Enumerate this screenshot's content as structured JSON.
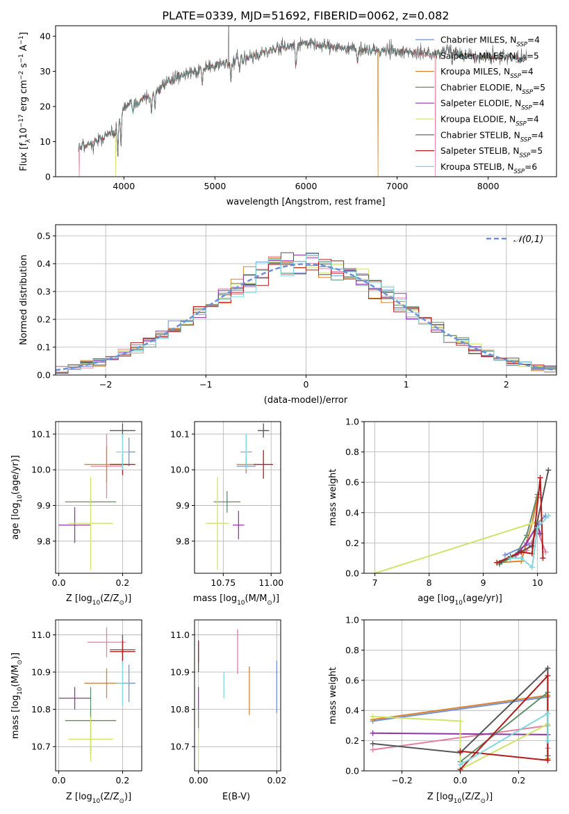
{
  "figure_title": "PLATE=0339, MJD=51692, FIBERID=0062, z=0.082",
  "colors": {
    "Chabrier MILES": "#6f8fd9",
    "Salpeter MILES": "#e67e9e",
    "Kroupa MILES": "#d9822b",
    "Chabrier ELODIE": "#5f8f6a",
    "Salpeter ELODIE": "#8e35a8",
    "Kroupa ELODIE": "#cfe36a",
    "Chabrier STELIB": "#555555",
    "Salpeter STELIB": "#b01a1a",
    "Kroupa STELIB": "#7fd6dd",
    "normal": "#6a90d8",
    "grid": "#b0b0b0"
  },
  "chart_data": [
    {
      "id": "spectrum",
      "type": "line",
      "title": "PLATE=0339, MJD=51692, FIBERID=0062, z=0.082",
      "xlabel": "wavelength [Angstrom, rest frame]",
      "ylabel": "Flux [f_λ10^-17 erg cm^-2 s^-1 A^-1]",
      "xlim": [
        3250,
        8750
      ],
      "ylim": [
        0,
        43
      ],
      "xticks": [
        4000,
        5000,
        6000,
        7000,
        8000
      ],
      "yticks": [
        0,
        10,
        20,
        30,
        40
      ],
      "grid": false,
      "legend_position": "top-right",
      "legend": [
        {
          "name": "Chabrier MILES",
          "nssp": "4"
        },
        {
          "name": "Salpeter MILES",
          "nssp": "5"
        },
        {
          "name": "Kroupa MILES",
          "nssp": "4"
        },
        {
          "name": "Chabrier ELODIE",
          "nssp": "5"
        },
        {
          "name": "Salpeter ELODIE",
          "nssp": "4"
        },
        {
          "name": "Kroupa ELODIE",
          "nssp": "4"
        },
        {
          "name": "Chabrier STELIB",
          "nssp": "4"
        },
        {
          "name": "Salpeter STELIB",
          "nssp": "5"
        },
        {
          "name": "Kroupa STELIB",
          "nssp": "6"
        }
      ],
      "continuum": [
        [
          3500,
          8
        ],
        [
          3700,
          10
        ],
        [
          3900,
          13
        ],
        [
          4000,
          20
        ],
        [
          4200,
          22
        ],
        [
          4400,
          25
        ],
        [
          4600,
          29
        ],
        [
          4800,
          30
        ],
        [
          5000,
          32
        ],
        [
          5200,
          33
        ],
        [
          5400,
          34
        ],
        [
          5600,
          36
        ],
        [
          5800,
          37
        ],
        [
          6000,
          38
        ],
        [
          6200,
          37
        ],
        [
          6400,
          37
        ],
        [
          6600,
          36
        ],
        [
          6800,
          36
        ],
        [
          7000,
          36
        ],
        [
          7200,
          35
        ],
        [
          7400,
          35
        ],
        [
          7600,
          36
        ],
        [
          7800,
          34
        ],
        [
          8000,
          34
        ],
        [
          8200,
          34
        ],
        [
          8400,
          34
        ]
      ],
      "absorption_features": [
        [
          3934,
          10
        ],
        [
          3969,
          9
        ],
        [
          4101,
          4
        ],
        [
          4304,
          6
        ],
        [
          4340,
          5
        ],
        [
          4861,
          5
        ],
        [
          5175,
          6
        ],
        [
          5270,
          3
        ],
        [
          5890,
          6
        ],
        [
          6563,
          4
        ],
        [
          7605,
          4
        ]
      ],
      "dropouts": [
        [
          3510,
          "Salpeter MILES"
        ],
        [
          3910,
          "Kroupa ELODIE"
        ],
        [
          6790,
          "Kroupa MILES"
        ],
        [
          7420,
          "Salpeter MILES"
        ]
      ]
    },
    {
      "id": "residuals",
      "type": "bar",
      "xlabel": "(data-model)/error",
      "ylabel": "Normed distribution",
      "xlim": [
        -2.5,
        2.5
      ],
      "ylim": [
        0,
        0.54
      ],
      "xticks": [
        -2,
        -1,
        0,
        1,
        2
      ],
      "yticks": [
        0.0,
        0.1,
        0.2,
        0.3,
        0.4,
        0.5
      ],
      "grid": true,
      "legend": "𝒩(0,1)",
      "legend_position": "top-right",
      "bins": 40,
      "normal_curve": {
        "mean": 0,
        "sigma": 1
      }
    },
    {
      "id": "age-vs-Z",
      "type": "scatter",
      "xlabel": "Z [log10(Z/Z⊙)]",
      "ylabel": "age  [log10(age/yr)]",
      "xlim": [
        -0.01,
        0.26
      ],
      "ylim": [
        9.71,
        10.135
      ],
      "xticks": [
        0.0,
        0.2
      ],
      "yticks": [
        9.8,
        9.9,
        10.0,
        10.1
      ],
      "grid": true,
      "points": [
        {
          "series": "Chabrier MILES",
          "x": 0.22,
          "y": 10.05,
          "xerr": 0.02,
          "yerr": 0.04
        },
        {
          "series": "Salpeter MILES",
          "x": 0.15,
          "y": 10.01,
          "xerr": 0.05,
          "yerr": 0.09
        },
        {
          "series": "Kroupa MILES",
          "x": 0.15,
          "y": 10.015,
          "xerr": 0.07,
          "yerr": 0.05
        },
        {
          "series": "Chabrier ELODIE",
          "x": 0.1,
          "y": 9.91,
          "xerr": 0.08,
          "yerr": 0.01
        },
        {
          "series": "Salpeter ELODIE",
          "x": 0.05,
          "y": 9.845,
          "xerr": 0.05,
          "yerr": 0.05
        },
        {
          "series": "Kroupa ELODIE",
          "x": 0.1,
          "y": 9.85,
          "xerr": 0.07,
          "yerr": 0.13
        },
        {
          "series": "Chabrier STELIB",
          "x": 0.2,
          "y": 10.11,
          "xerr": 0.04,
          "yerr": 0.02
        },
        {
          "series": "Salpeter STELIB",
          "x": 0.2,
          "y": 10.015,
          "xerr": 0.04,
          "yerr": 0.03
        },
        {
          "series": "Kroupa STELIB",
          "x": 0.2,
          "y": 10.05,
          "xerr": 0.02,
          "yerr": 0.05
        }
      ]
    },
    {
      "id": "age-vs-mass",
      "type": "scatter",
      "xlabel": "mass [log10(M/M⊙)]",
      "ylabel": "",
      "xlim": [
        10.6,
        11.05
      ],
      "ylim": [
        9.71,
        10.135
      ],
      "xticks": [
        10.75,
        11.0
      ],
      "yticks": [
        9.8,
        9.9,
        10.0,
        10.1
      ],
      "grid": true,
      "points": [
        {
          "series": "Chabrier MILES",
          "x": 10.87,
          "y": 10.01,
          "xerr": 0.05,
          "yerr": 0.02
        },
        {
          "series": "Salpeter MILES",
          "x": 10.87,
          "y": 10.05,
          "xerr": 0.03,
          "yerr": 0.05
        },
        {
          "series": "Kroupa MILES",
          "x": 10.87,
          "y": 10.015,
          "xerr": 0.05,
          "yerr": 0.02
        },
        {
          "series": "Chabrier ELODIE",
          "x": 10.77,
          "y": 9.91,
          "xerr": 0.07,
          "yerr": 0.03
        },
        {
          "series": "Salpeter ELODIE",
          "x": 10.83,
          "y": 9.845,
          "xerr": 0.03,
          "yerr": 0.04
        },
        {
          "series": "Kroupa ELODIE",
          "x": 10.72,
          "y": 9.85,
          "xerr": 0.06,
          "yerr": 0.13
        },
        {
          "series": "Chabrier STELIB",
          "x": 10.96,
          "y": 10.11,
          "xerr": 0.03,
          "yerr": 0.02
        },
        {
          "series": "Salpeter STELIB",
          "x": 10.96,
          "y": 10.015,
          "xerr": 0.05,
          "yerr": 0.04
        },
        {
          "series": "Kroupa STELIB",
          "x": 10.87,
          "y": 10.05,
          "xerr": 0.01,
          "yerr": 0.05
        }
      ]
    },
    {
      "id": "weight-vs-age",
      "type": "line",
      "xlabel": "age  [log10(age/yr)]",
      "ylabel": "mass weight",
      "xlim": [
        6.8,
        10.35
      ],
      "ylim": [
        0,
        1
      ],
      "xticks": [
        7,
        8,
        9,
        10
      ],
      "yticks": [
        0.0,
        0.2,
        0.4,
        0.6,
        0.8,
        1.0
      ],
      "grid": true,
      "series": [
        {
          "name": "Chabrier MILES",
          "x": [
            9.4,
            9.9,
            10.0,
            10.15
          ],
          "y": [
            0.12,
            0.2,
            0.33,
            0.38
          ]
        },
        {
          "name": "Salpeter MILES",
          "x": [
            9.6,
            9.8,
            10.0,
            10.15
          ],
          "y": [
            0.12,
            0.15,
            0.28,
            0.14
          ]
        },
        {
          "name": "Kroupa MILES",
          "x": [
            9.25,
            9.7,
            9.9,
            10.0
          ],
          "y": [
            0.07,
            0.08,
            0.33,
            0.5
          ]
        },
        {
          "name": "Chabrier ELODIE",
          "x": [
            9.3,
            9.6,
            9.8,
            10.0
          ],
          "y": [
            0.06,
            0.12,
            0.25,
            0.52
          ]
        },
        {
          "name": "Salpeter ELODIE",
          "x": [
            9.6,
            9.8,
            10.0,
            10.05
          ],
          "y": [
            0.12,
            0.2,
            0.32,
            0.26
          ]
        },
        {
          "name": "Kroupa ELODIE",
          "x": [
            7.0,
            9.9,
            10.0
          ],
          "y": [
            0.0,
            0.33,
            0.35
          ]
        },
        {
          "name": "Chabrier STELIB",
          "x": [
            9.3,
            9.5,
            9.9,
            10.2
          ],
          "y": [
            0.07,
            0.11,
            0.18,
            0.68
          ]
        },
        {
          "name": "Salpeter STELIB",
          "x": [
            9.25,
            9.7,
            9.9,
            10.05,
            10.1
          ],
          "y": [
            0.07,
            0.14,
            0.13,
            0.63,
            0.1
          ]
        },
        {
          "name": "Kroupa STELIB",
          "x": [
            9.5,
            9.7,
            9.9,
            10.0,
            10.2
          ],
          "y": [
            0.1,
            0.1,
            0.04,
            0.3,
            0.38
          ]
        }
      ]
    },
    {
      "id": "mass-vs-Z",
      "type": "scatter",
      "xlabel": "Z [log10(Z/Z⊙)]",
      "ylabel": "mass [log10(M/M⊙)]",
      "xlim": [
        -0.01,
        0.26
      ],
      "ylim": [
        10.635,
        11.04
      ],
      "xticks": [
        0.0,
        0.2
      ],
      "yticks": [
        10.7,
        10.8,
        10.9,
        11.0
      ],
      "grid": true,
      "points": [
        {
          "series": "Chabrier MILES",
          "x": 0.22,
          "y": 10.87,
          "xerr": 0.02,
          "yerr": 0.05
        },
        {
          "series": "Salpeter MILES",
          "x": 0.15,
          "y": 10.98,
          "xerr": 0.06,
          "yerr": 0.04
        },
        {
          "series": "Kroupa MILES",
          "x": 0.15,
          "y": 10.87,
          "xerr": 0.07,
          "yerr": 0.04
        },
        {
          "series": "Chabrier ELODIE",
          "x": 0.1,
          "y": 10.77,
          "xerr": 0.08,
          "yerr": 0.09
        },
        {
          "series": "Salpeter ELODIE",
          "x": 0.05,
          "y": 10.83,
          "xerr": 0.05,
          "yerr": 0.03
        },
        {
          "series": "Kroupa ELODIE",
          "x": 0.1,
          "y": 10.72,
          "xerr": 0.07,
          "yerr": 0.06
        },
        {
          "series": "Chabrier STELIB",
          "x": 0.2,
          "y": 10.96,
          "xerr": 0.04,
          "yerr": 0.04
        },
        {
          "series": "Salpeter STELIB",
          "x": 0.2,
          "y": 10.955,
          "xerr": 0.04,
          "yerr": 0.03
        },
        {
          "series": "Kroupa STELIB",
          "x": 0.2,
          "y": 10.87,
          "xerr": 0.02,
          "yerr": 0.06
        }
      ]
    },
    {
      "id": "mass-vs-EBV",
      "type": "scatter",
      "xlabel": "E(B-V)",
      "ylabel": "",
      "xlim": [
        -0.001,
        0.021
      ],
      "ylim": [
        10.635,
        11.04
      ],
      "xticks": [
        0.0,
        0.02
      ],
      "yticks": [
        10.7,
        10.8,
        10.9,
        11.0
      ],
      "grid": true,
      "points": [
        {
          "series": "Chabrier MILES",
          "x": 0.02,
          "y": 10.86,
          "xerr": 0,
          "yerr": 0.07
        },
        {
          "series": "Salpeter MILES",
          "x": 0.01,
          "y": 10.955,
          "xerr": 0,
          "yerr": 0.06
        },
        {
          "series": "Kroupa MILES",
          "x": 0.013,
          "y": 10.85,
          "xerr": 0,
          "yerr": 0.065
        },
        {
          "series": "Chabrier ELODIE",
          "x": 0.0,
          "y": 10.77,
          "xerr": 0,
          "yerr": 0.03
        },
        {
          "series": "Salpeter ELODIE",
          "x": 0.0,
          "y": 10.83,
          "xerr": 0,
          "yerr": 0.03
        },
        {
          "series": "Kroupa ELODIE",
          "x": 0.0,
          "y": 10.7,
          "xerr": 0,
          "yerr": 0.05
        },
        {
          "series": "Chabrier STELIB",
          "x": 0.0,
          "y": 10.94,
          "xerr": 0,
          "yerr": 0.04
        },
        {
          "series": "Salpeter STELIB",
          "x": 0.0,
          "y": 10.955,
          "xerr": 0,
          "yerr": 0.03
        },
        {
          "series": "Kroupa STELIB",
          "x": 0.0065,
          "y": 10.865,
          "xerr": 0,
          "yerr": 0.035
        }
      ]
    },
    {
      "id": "weight-vs-Z",
      "type": "line",
      "xlabel": "Z [log10(Z/Z⊙)]",
      "ylabel": "mass weight",
      "xlim": [
        -0.33,
        0.33
      ],
      "ylim": [
        0,
        1
      ],
      "xticks": [
        -0.2,
        0.0,
        0.2
      ],
      "yticks": [
        0.0,
        0.2,
        0.4,
        0.6,
        0.8,
        1.0
      ],
      "grid": true,
      "series": [
        {
          "name": "Chabrier MILES",
          "x": [
            -0.3,
            0.3,
            0.3
          ],
          "y": [
            0.33,
            0.49,
            0.1
          ]
        },
        {
          "name": "Salpeter MILES",
          "x": [
            -0.3,
            0.3,
            0.3
          ],
          "y": [
            0.14,
            0.3,
            0.15
          ]
        },
        {
          "name": "Kroupa MILES",
          "x": [
            -0.3,
            0.3,
            0.3
          ],
          "y": [
            0.34,
            0.5,
            0.08
          ]
        },
        {
          "name": "Chabrier ELODIE",
          "x": [
            0.0,
            0.3,
            0.3
          ],
          "y": [
            0.06,
            0.52,
            0.1
          ]
        },
        {
          "name": "Salpeter ELODIE",
          "x": [
            -0.3,
            0.3
          ],
          "y": [
            0.25,
            0.24
          ]
        },
        {
          "name": "Kroupa ELODIE",
          "x": [
            -0.3,
            0.0,
            0.0,
            0.3
          ],
          "y": [
            0.36,
            0.33,
            0.01,
            0.31
          ]
        },
        {
          "name": "Chabrier STELIB",
          "x": [
            -0.3,
            0.0,
            0.3,
            0.3
          ],
          "y": [
            0.18,
            0.12,
            0.68,
            0.07
          ]
        },
        {
          "name": "Salpeter STELIB",
          "x": [
            0.0,
            0.3,
            0.3,
            0.0
          ],
          "y": [
            0.01,
            0.63,
            0.07,
            0.13
          ]
        },
        {
          "name": "Kroupa STELIB",
          "x": [
            0.0,
            0.3,
            0.3
          ],
          "y": [
            0.04,
            0.38,
            0.2
          ]
        }
      ]
    }
  ]
}
